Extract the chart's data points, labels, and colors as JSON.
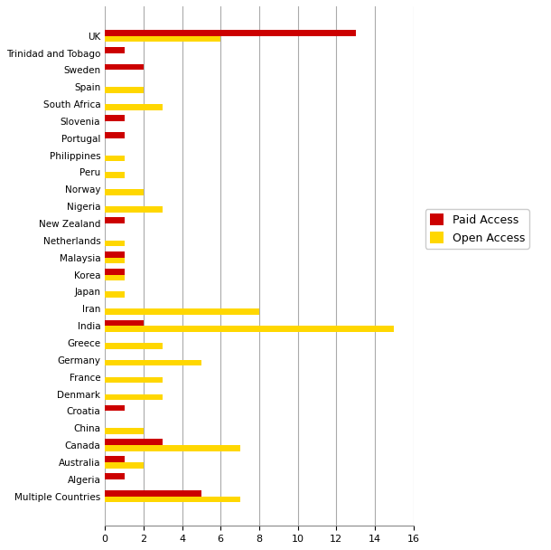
{
  "categories": [
    "Multiple Countries",
    "Algeria",
    "Australia",
    "Canada",
    "China",
    "Croatia",
    "Denmark",
    "France",
    "Germany",
    "Greece",
    "India",
    "Iran",
    "Japan",
    "Korea",
    "Malaysia",
    "Netherlands",
    "New Zealand",
    "Nigeria",
    "Norway",
    "Peru",
    "Philippines",
    "Portugal",
    "Slovenia",
    "South Africa",
    "Spain",
    "Sweden",
    "Trinidad and Tobago",
    "UK"
  ],
  "paid_access": [
    5,
    1,
    1,
    3,
    0,
    1,
    0,
    0,
    0,
    0,
    2,
    0,
    0,
    1,
    1,
    0,
    1,
    0,
    0,
    0,
    0,
    1,
    1,
    0,
    0,
    2,
    1,
    13
  ],
  "open_access": [
    7,
    0,
    2,
    7,
    2,
    0,
    3,
    3,
    5,
    3,
    15,
    8,
    1,
    1,
    1,
    1,
    0,
    3,
    2,
    1,
    1,
    0,
    0,
    3,
    2,
    0,
    0,
    6
  ],
  "paid_color": "#CC0000",
  "open_color": "#FFD700",
  "xlim": [
    0,
    16
  ],
  "xticks": [
    0,
    2,
    4,
    6,
    8,
    10,
    12,
    14,
    16
  ],
  "bar_height": 0.35,
  "legend_paid": "Paid Access",
  "legend_open": "Open Access",
  "background_color": "#FFFFFF",
  "grid_color": "#AAAAAA"
}
